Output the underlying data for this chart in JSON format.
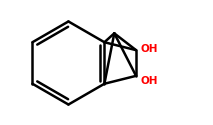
{
  "background_color": "#ffffff",
  "line_color": "#000000",
  "oh_color": "#ff0000",
  "line_width": 1.8,
  "figsize": [
    2.13,
    1.25
  ],
  "dpi": 100,
  "oh_fontsize": 7.5,
  "oh1_text": "OH",
  "oh2_text": "OH"
}
